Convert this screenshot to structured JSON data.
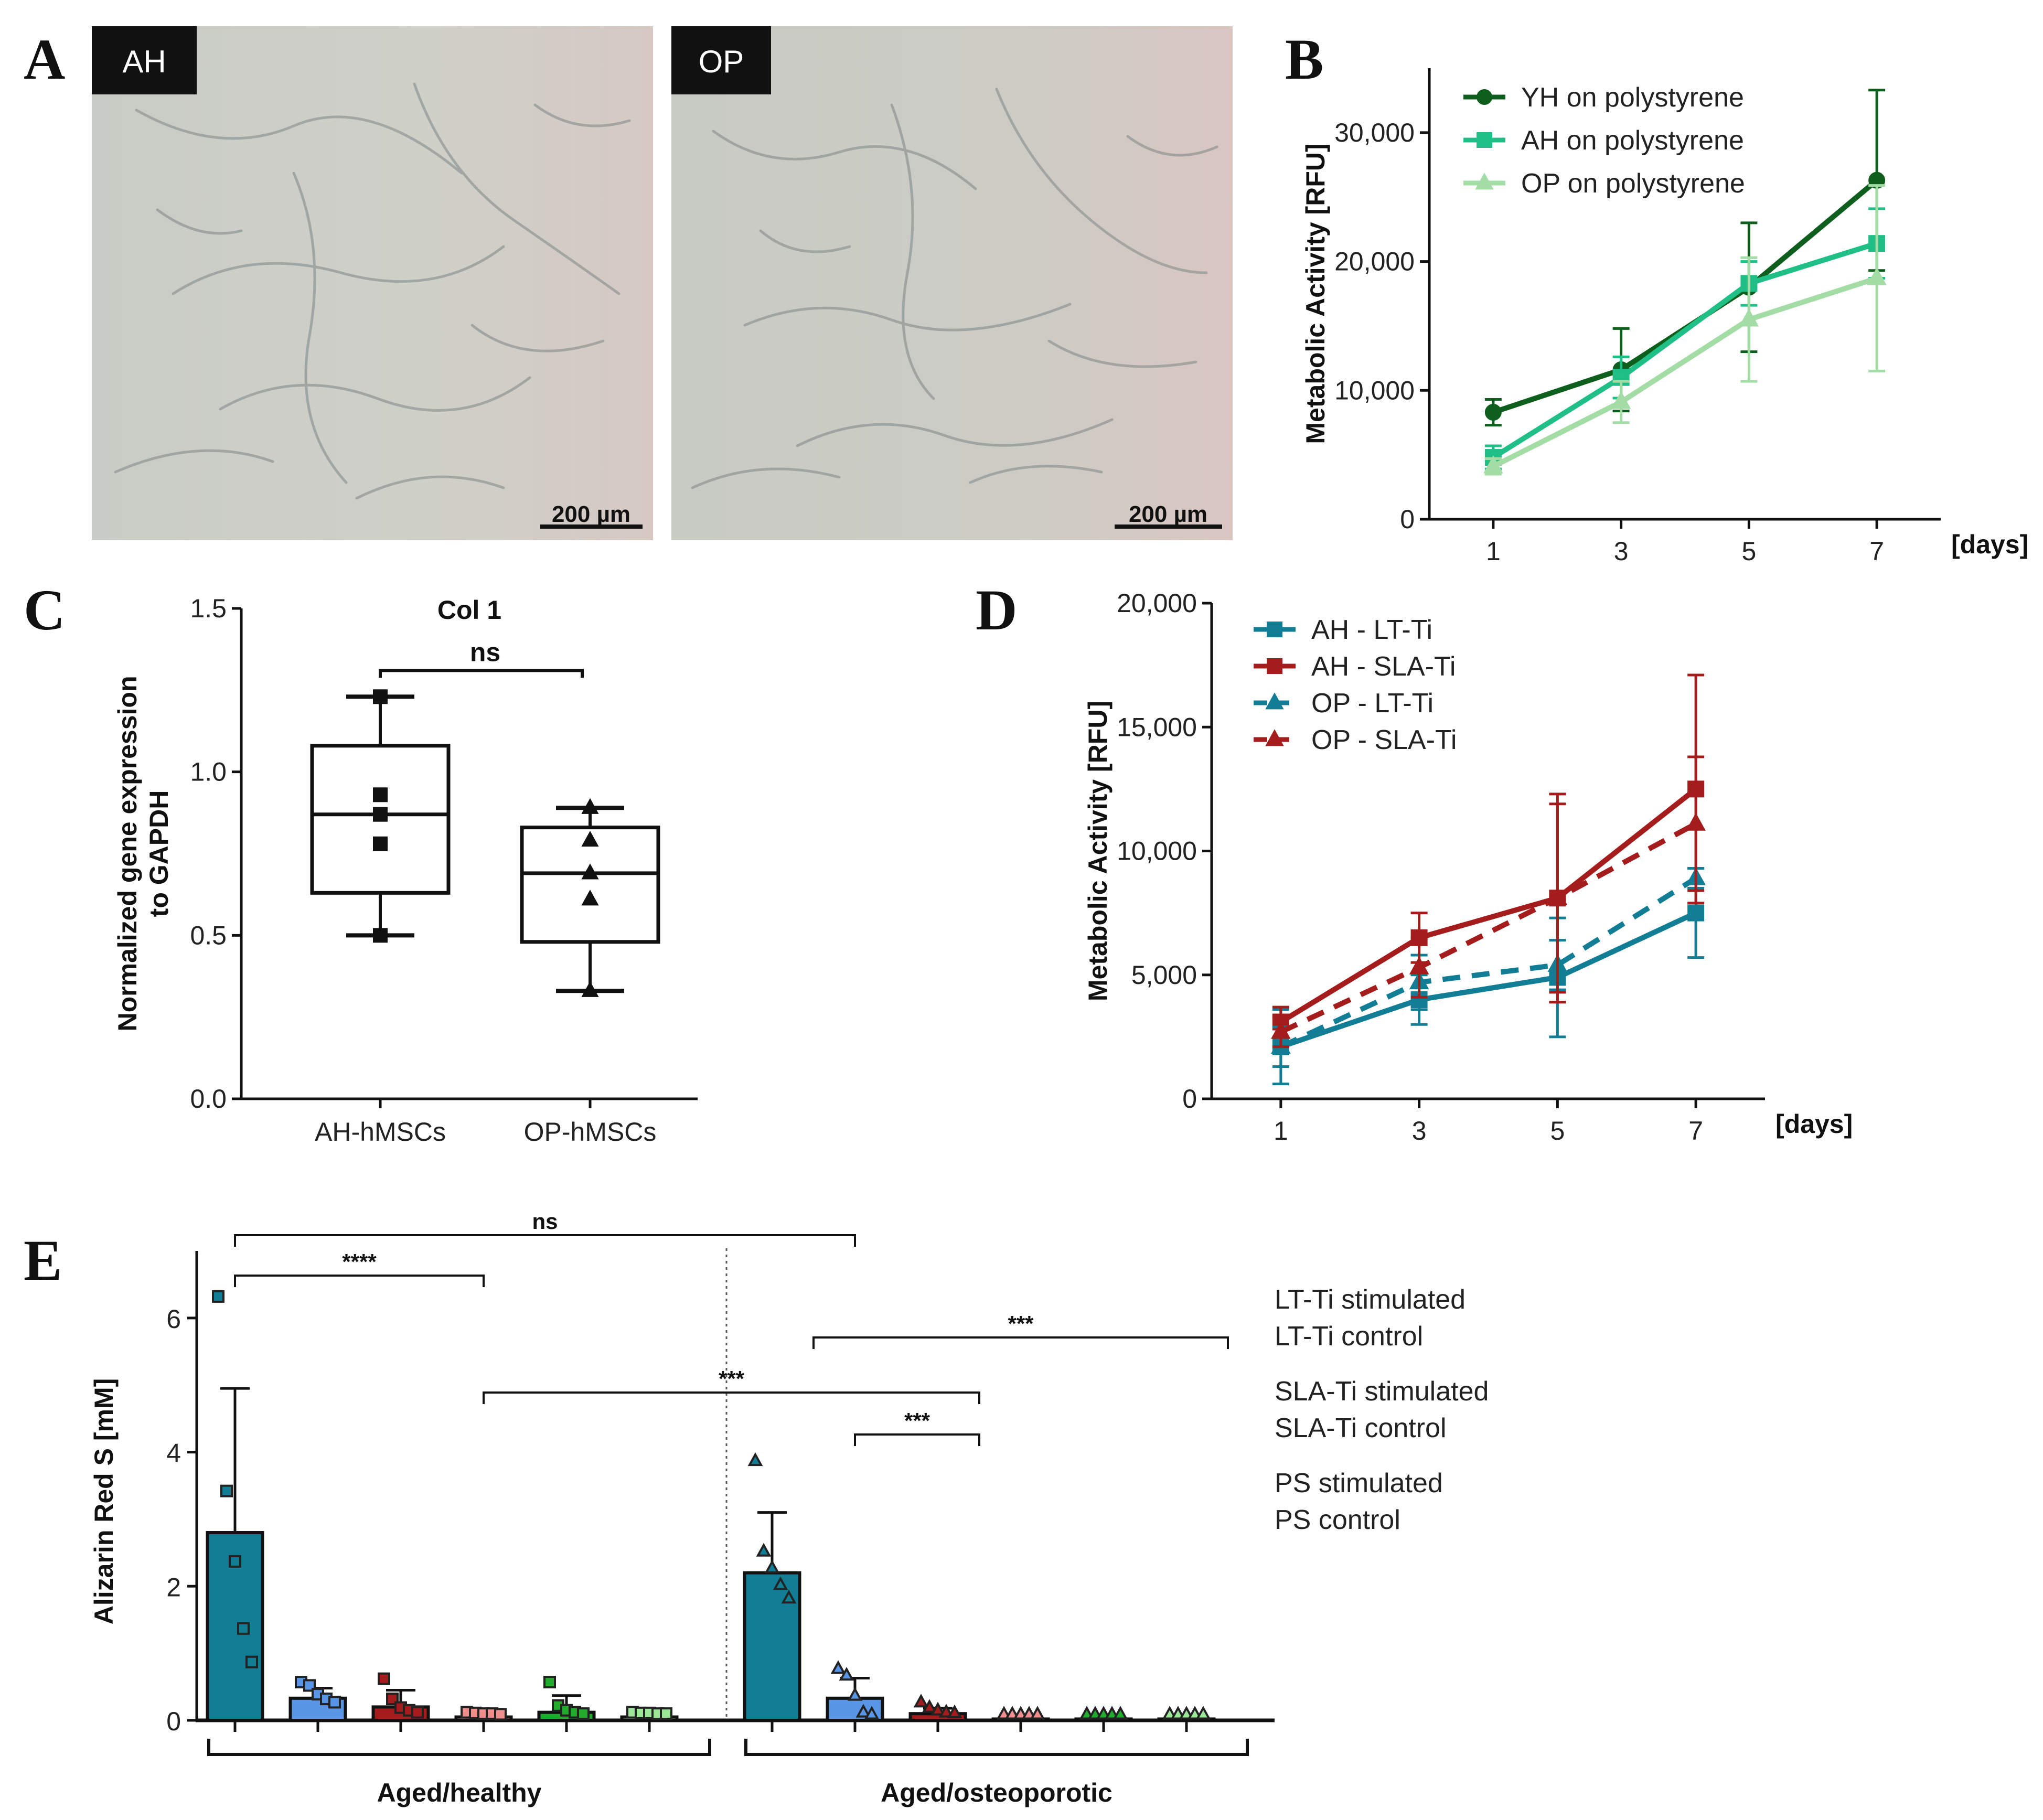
{
  "panels": {
    "A": {
      "letter": "A",
      "images": [
        {
          "label": "AH",
          "scalebar": "200 µm"
        },
        {
          "label": "OP",
          "scalebar": "200 µm"
        }
      ]
    },
    "B": {
      "letter": "B"
    },
    "C": {
      "letter": "C"
    },
    "D": {
      "letter": "D"
    },
    "E": {
      "letter": "E"
    }
  },
  "colors": {
    "yh": "#0e5e1d",
    "ah_ps": "#1fbf85",
    "op_ps": "#a4dca6",
    "lt": "#127e96",
    "sla": "#a51c1c",
    "lt_stim": "#127e96",
    "lt_ctrl": "#5a96e6",
    "sla_stim": "#a51c1c",
    "sla_ctrl": "#f08e8e",
    "ps_stim": "#21ac2e",
    "ps_ctrl": "#9ae896"
  },
  "chart_data": [
    {
      "id": "B",
      "type": "line",
      "title": "",
      "xlabel": "[days]",
      "ylabel": "Metabolic Activity [RFU]",
      "x": [
        1,
        3,
        5,
        7
      ],
      "xlim": [
        0,
        8
      ],
      "ylim": [
        0,
        35000
      ],
      "yticks": [
        "0",
        "10,000",
        "20,000",
        "30,000"
      ],
      "xticks": [
        "1",
        "3",
        "5",
        "7"
      ],
      "legend_position": "top-left",
      "series": [
        {
          "name": "YH on polystyrene",
          "values": [
            8300,
            11600,
            18000,
            26300
          ],
          "err": [
            1000,
            3200,
            5000,
            7000
          ],
          "color_key": "yh",
          "marker": "circle"
        },
        {
          "name": "AH on polystyrene",
          "values": [
            4800,
            11000,
            18300,
            21400
          ],
          "err": [
            900,
            1600,
            1700,
            2700
          ],
          "color_key": "ah_ps",
          "marker": "square"
        },
        {
          "name": "OP on polystyrene",
          "values": [
            4100,
            9100,
            15500,
            18700
          ],
          "err": [
            600,
            1600,
            4800,
            7200
          ],
          "color_key": "op_ps",
          "marker": "triangle"
        }
      ]
    },
    {
      "id": "C",
      "type": "box",
      "title": "Col 1",
      "ylabel": "Normalized gene expression to GAPDH",
      "ylim": [
        0,
        1.5
      ],
      "yticks": [
        "0.0",
        "0.5",
        "1.0",
        "1.5"
      ],
      "categories": [
        "AH-hMSCs",
        "OP-hMSCs"
      ],
      "boxes": [
        {
          "min": 0.5,
          "q1": 0.63,
          "median": 0.87,
          "q3": 1.08,
          "max": 1.23,
          "points": [
            1.23,
            0.93,
            0.87,
            0.78,
            0.5
          ],
          "marker": "square"
        },
        {
          "min": 0.33,
          "q1": 0.48,
          "median": 0.69,
          "q3": 0.83,
          "max": 0.89,
          "points": [
            0.89,
            0.79,
            0.69,
            0.61,
            0.33
          ],
          "marker": "triangle"
        }
      ],
      "significance": "ns"
    },
    {
      "id": "D",
      "type": "line",
      "xlabel": "[days]",
      "ylabel": "Metabolic Activity  [RFU]",
      "x": [
        1,
        3,
        5,
        7
      ],
      "xlim": [
        0,
        8
      ],
      "ylim": [
        0,
        20000
      ],
      "yticks": [
        "0",
        "5,000",
        "10,000",
        "15,000",
        "20,000"
      ],
      "xticks": [
        "1",
        "3",
        "5",
        "7"
      ],
      "legend_position": "top-left",
      "series": [
        {
          "name": "AH - LT-Ti",
          "values": [
            2100,
            4000,
            4900,
            7500
          ],
          "err": [
            1500,
            1000,
            2400,
            1800
          ],
          "color_key": "lt",
          "marker": "square",
          "dashed": false
        },
        {
          "name": "AH - SLA-Ti",
          "values": [
            3100,
            6500,
            8100,
            12500
          ],
          "err": [
            600,
            1000,
            4200,
            4600
          ],
          "color_key": "sla",
          "marker": "square",
          "dashed": false
        },
        {
          "name": "OP - LT-Ti",
          "values": [
            2100,
            4700,
            5400,
            8900
          ],
          "err": [
            800,
            1100,
            1000,
            400
          ],
          "color_key": "lt",
          "marker": "triangle",
          "dashed": true
        },
        {
          "name": "OP - SLA-Ti",
          "values": [
            2700,
            5300,
            8100,
            11100
          ],
          "err": [
            600,
            1200,
            3800,
            2700
          ],
          "color_key": "sla",
          "marker": "triangle",
          "dashed": true
        }
      ]
    },
    {
      "id": "E",
      "type": "bar",
      "ylabel": "Alizarin Red S [mM]",
      "ylim": [
        0,
        7
      ],
      "yticks": [
        "0",
        "2",
        "4",
        "6"
      ],
      "groups": [
        "Aged/healthy",
        "Aged/osteoporotic"
      ],
      "legend": [
        {
          "label": "LT-Ti stimulated",
          "color_key": "lt_stim"
        },
        {
          "label": "LT-Ti control",
          "color_key": "lt_ctrl"
        },
        {
          "label": "SLA-Ti stimulated",
          "color_key": "sla_stim"
        },
        {
          "label": "SLA-Ti control",
          "color_key": "sla_ctrl"
        },
        {
          "label": "PS stimulated",
          "color_key": "ps_stim"
        },
        {
          "label": "PS control",
          "color_key": "ps_ctrl"
        }
      ],
      "bars": [
        {
          "group": "Aged/healthy",
          "condition": "LT-Ti stimulated",
          "mean": 2.8,
          "err": 2.15,
          "points": [
            6.25,
            3.35,
            2.3,
            1.3,
            0.8
          ],
          "marker": "square"
        },
        {
          "group": "Aged/healthy",
          "condition": "LT-Ti control",
          "mean": 0.33,
          "err": 0.15,
          "points": [
            0.5,
            0.45,
            0.32,
            0.25,
            0.2
          ],
          "marker": "square"
        },
        {
          "group": "Aged/healthy",
          "condition": "SLA-Ti stimulated",
          "mean": 0.2,
          "err": 0.25,
          "points": [
            0.55,
            0.25,
            0.12,
            0.08,
            0.05
          ],
          "marker": "square"
        },
        {
          "group": "Aged/healthy",
          "condition": "SLA-Ti control",
          "mean": 0.05,
          "err": 0.02,
          "points": [
            0.05,
            0.04,
            0.03,
            0.03,
            0.02
          ],
          "marker": "square"
        },
        {
          "group": "Aged/healthy",
          "condition": "PS stimulated",
          "mean": 0.12,
          "err": 0.25,
          "points": [
            0.5,
            0.15,
            0.08,
            0.05,
            0.03
          ],
          "marker": "square"
        },
        {
          "group": "Aged/healthy",
          "condition": "PS control",
          "mean": 0.05,
          "err": 0.02,
          "points": [
            0.05,
            0.04,
            0.04,
            0.03,
            0.03
          ],
          "marker": "square"
        },
        {
          "group": "Aged/osteoporotic",
          "condition": "LT-Ti stimulated",
          "mean": 2.2,
          "err": 0.9,
          "points": [
            3.8,
            2.45,
            2.2,
            1.95,
            1.75
          ],
          "marker": "triangle"
        },
        {
          "group": "Aged/osteoporotic",
          "condition": "LT-Ti control",
          "mean": 0.33,
          "err": 0.3,
          "points": [
            0.7,
            0.6,
            0.3,
            0.05,
            0.02
          ],
          "marker": "triangle"
        },
        {
          "group": "Aged/osteoporotic",
          "condition": "SLA-Ti stimulated",
          "mean": 0.1,
          "err": 0.08,
          "points": [
            0.2,
            0.12,
            0.08,
            0.05,
            0.04
          ],
          "marker": "triangle"
        },
        {
          "group": "Aged/osteoporotic",
          "condition": "SLA-Ti control",
          "mean": 0.02,
          "err": 0.01,
          "points": [
            0.02,
            0.02,
            0.02,
            0.02,
            0.02
          ],
          "marker": "triangle"
        },
        {
          "group": "Aged/osteoporotic",
          "condition": "PS stimulated",
          "mean": 0.02,
          "err": 0.01,
          "points": [
            0.02,
            0.02,
            0.02,
            0.02,
            0.02
          ],
          "marker": "triangle"
        },
        {
          "group": "Aged/osteoporotic",
          "condition": "PS control",
          "mean": 0.02,
          "err": 0.01,
          "points": [
            0.02,
            0.02,
            0.02,
            0.02,
            0.02
          ],
          "marker": "triangle"
        }
      ],
      "significance": [
        {
          "from": 0,
          "to": 7,
          "label": "ns"
        },
        {
          "from": 0,
          "to": 3,
          "label": "****"
        },
        {
          "from": 6.5,
          "to": 11.5,
          "label": "***"
        },
        {
          "from": 3,
          "to": 8.5,
          "label": "***"
        },
        {
          "from": 7,
          "to": 8.5,
          "label": "***"
        }
      ]
    }
  ]
}
